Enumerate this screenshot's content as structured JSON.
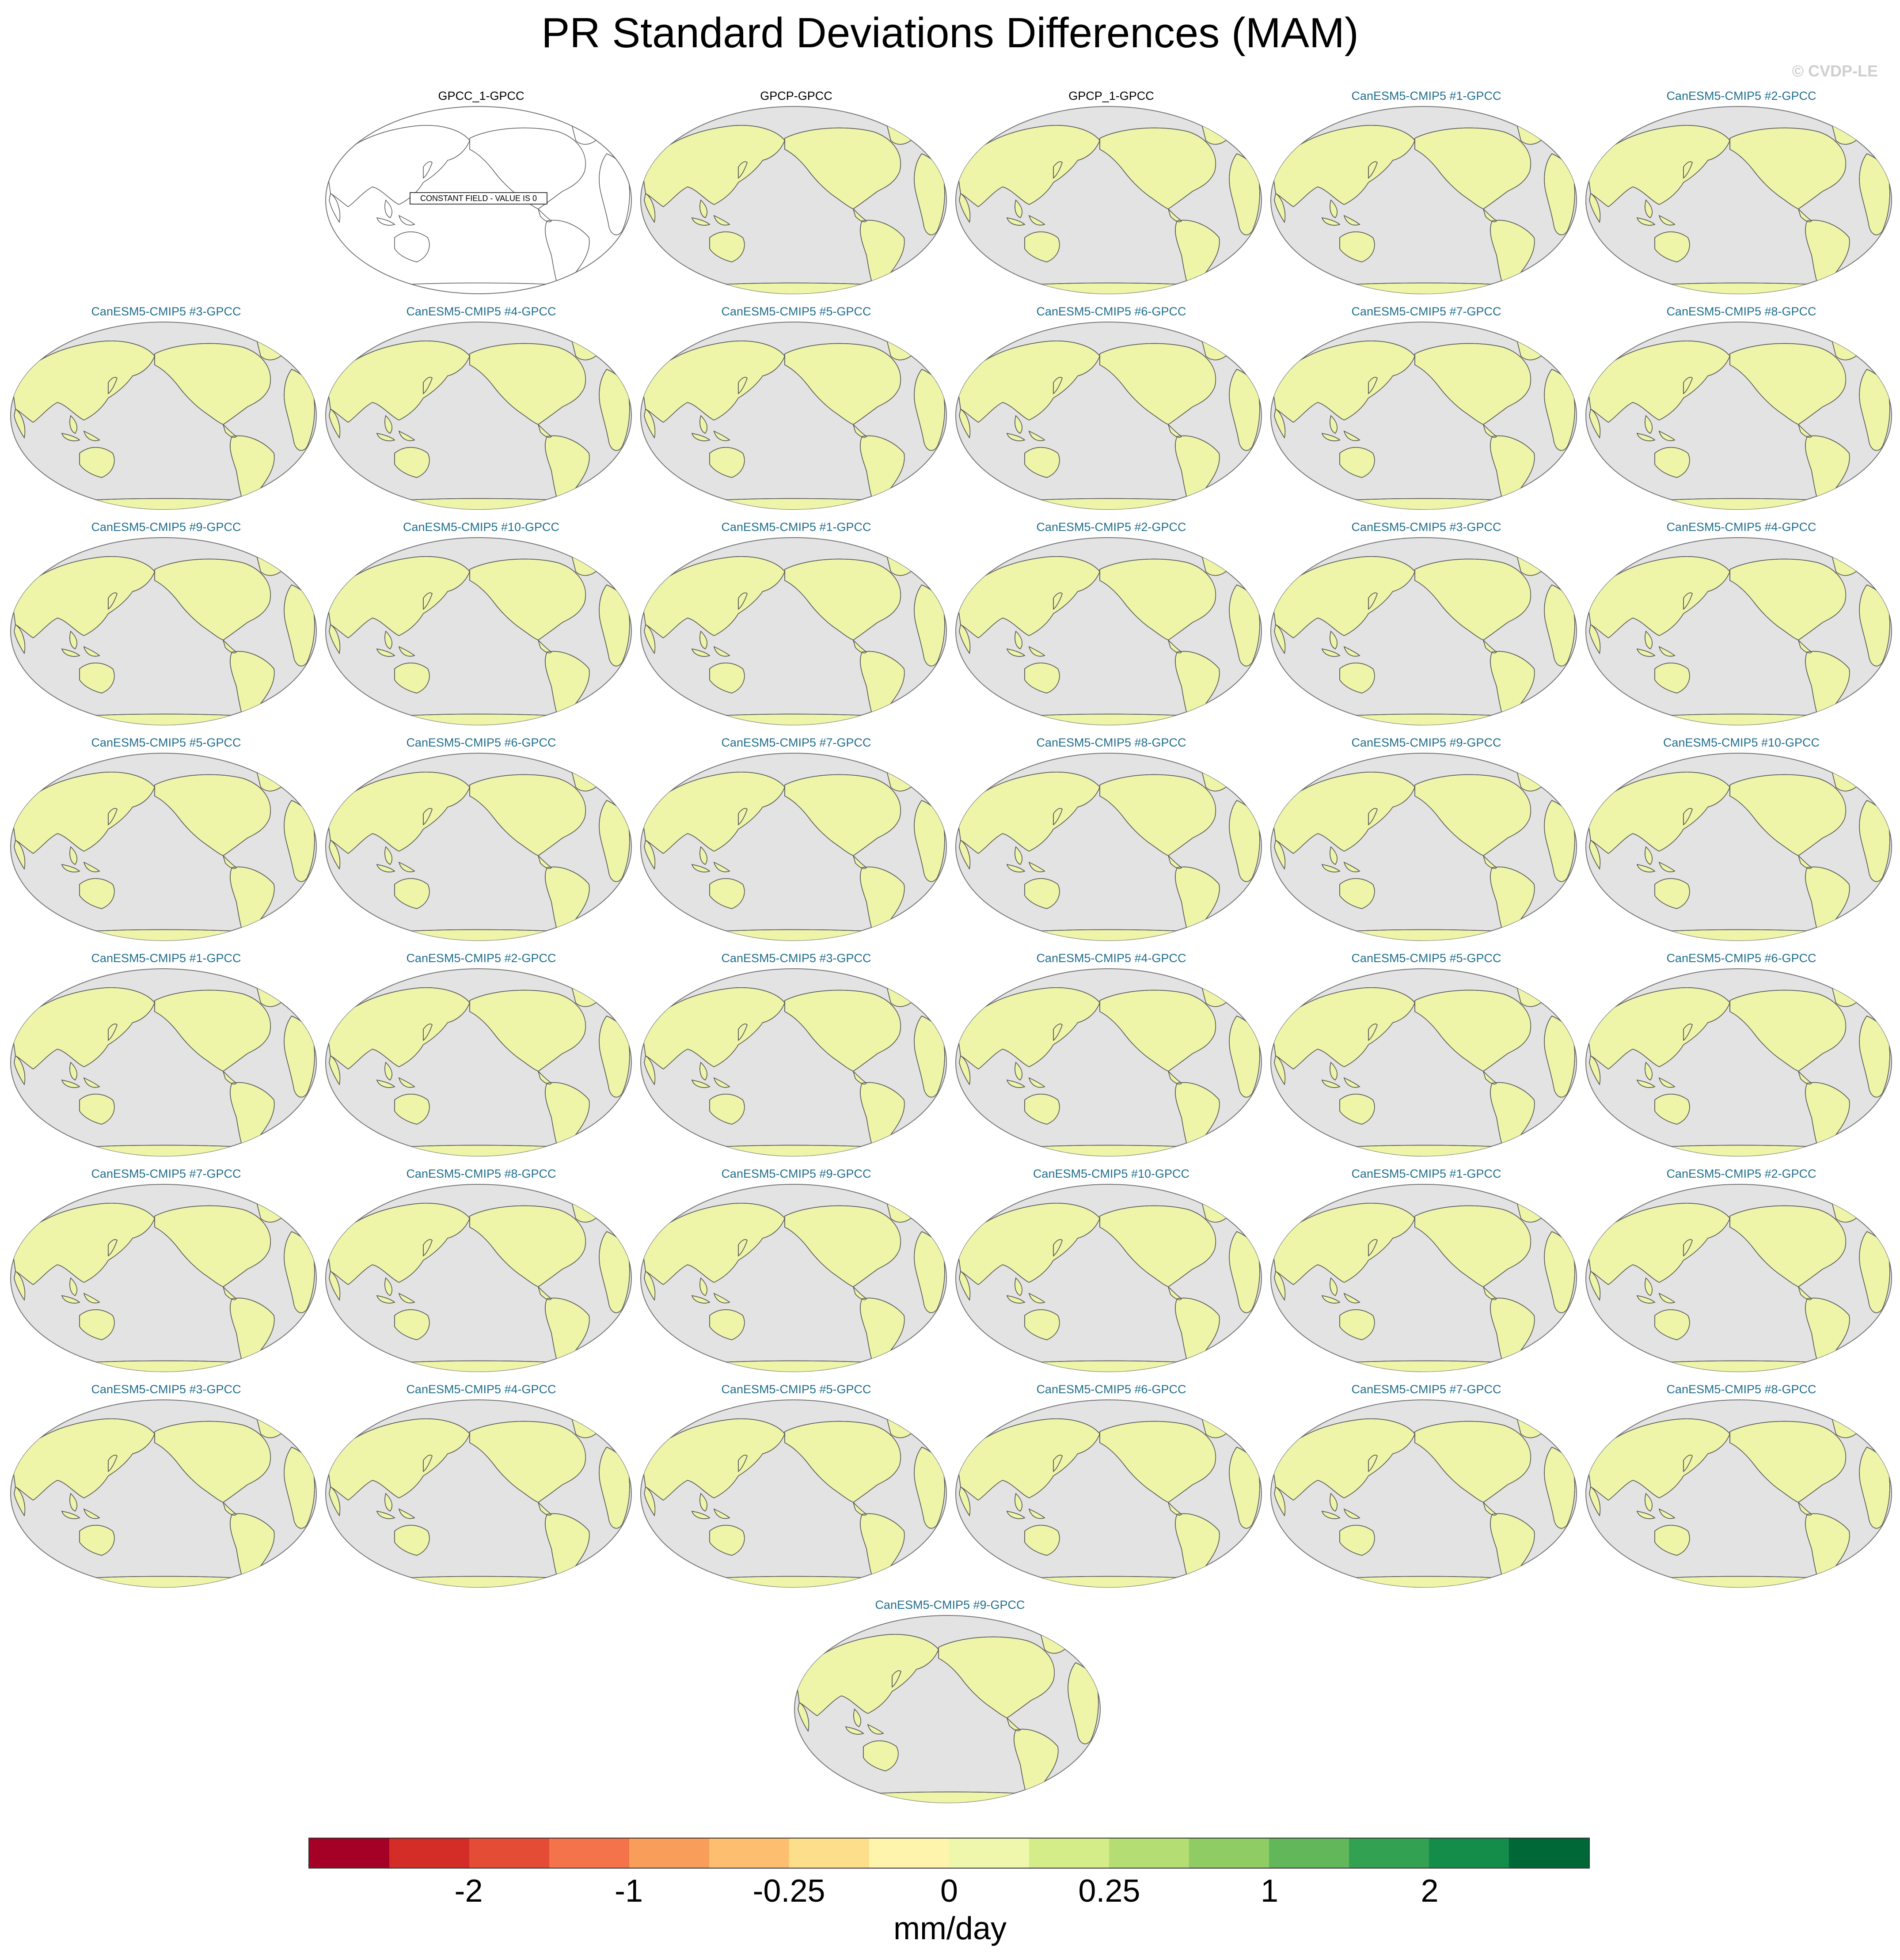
{
  "title": "PR Standard Deviations Differences (MAM)",
  "watermark": "© CVDP-LE",
  "colors": {
    "ocean": "#e3e3e3",
    "observation_title": "#000000",
    "model_title": "#1f6e8c",
    "coastline": "#555555"
  },
  "panels": [
    {
      "label": "GPCC_1-GPCC",
      "kind": "observation",
      "constant_note": "CONSTANT FIELD - VALUE IS 0"
    },
    {
      "label": "GPCP-GPCC",
      "kind": "observation"
    },
    {
      "label": "GPCP_1-GPCC",
      "kind": "observation"
    },
    {
      "label": "CanESM5-CMIP5 #1-GPCC",
      "kind": "model"
    },
    {
      "label": "CanESM5-CMIP5 #2-GPCC",
      "kind": "model"
    },
    {
      "label": "CanESM5-CMIP5 #3-GPCC",
      "kind": "model"
    },
    {
      "label": "CanESM5-CMIP5 #4-GPCC",
      "kind": "model"
    },
    {
      "label": "CanESM5-CMIP5 #5-GPCC",
      "kind": "model"
    },
    {
      "label": "CanESM5-CMIP5 #6-GPCC",
      "kind": "model"
    },
    {
      "label": "CanESM5-CMIP5 #7-GPCC",
      "kind": "model"
    },
    {
      "label": "CanESM5-CMIP5 #8-GPCC",
      "kind": "model"
    },
    {
      "label": "CanESM5-CMIP5 #9-GPCC",
      "kind": "model"
    },
    {
      "label": "CanESM5-CMIP5 #10-GPCC",
      "kind": "model"
    },
    {
      "label": "CanESM5-CMIP5 #1-GPCC",
      "kind": "model"
    },
    {
      "label": "CanESM5-CMIP5 #2-GPCC",
      "kind": "model"
    },
    {
      "label": "CanESM5-CMIP5 #3-GPCC",
      "kind": "model"
    },
    {
      "label": "CanESM5-CMIP5 #4-GPCC",
      "kind": "model"
    },
    {
      "label": "CanESM5-CMIP5 #5-GPCC",
      "kind": "model"
    },
    {
      "label": "CanESM5-CMIP5 #6-GPCC",
      "kind": "model"
    },
    {
      "label": "CanESM5-CMIP5 #7-GPCC",
      "kind": "model"
    },
    {
      "label": "CanESM5-CMIP5 #8-GPCC",
      "kind": "model"
    },
    {
      "label": "CanESM5-CMIP5 #9-GPCC",
      "kind": "model"
    },
    {
      "label": "CanESM5-CMIP5 #10-GPCC",
      "kind": "model"
    },
    {
      "label": "CanESM5-CMIP5 #1-GPCC",
      "kind": "model"
    },
    {
      "label": "CanESM5-CMIP5 #2-GPCC",
      "kind": "model"
    },
    {
      "label": "CanESM5-CMIP5 #3-GPCC",
      "kind": "model"
    },
    {
      "label": "CanESM5-CMIP5 #4-GPCC",
      "kind": "model"
    },
    {
      "label": "CanESM5-CMIP5 #5-GPCC",
      "kind": "model"
    },
    {
      "label": "CanESM5-CMIP5 #6-GPCC",
      "kind": "model"
    },
    {
      "label": "CanESM5-CMIP5 #7-GPCC",
      "kind": "model"
    },
    {
      "label": "CanESM5-CMIP5 #8-GPCC",
      "kind": "model"
    },
    {
      "label": "CanESM5-CMIP5 #9-GPCC",
      "kind": "model"
    },
    {
      "label": "CanESM5-CMIP5 #10-GPCC",
      "kind": "model"
    },
    {
      "label": "CanESM5-CMIP5 #1-GPCC",
      "kind": "model"
    },
    {
      "label": "CanESM5-CMIP5 #2-GPCC",
      "kind": "model"
    },
    {
      "label": "CanESM5-CMIP5 #3-GPCC",
      "kind": "model"
    },
    {
      "label": "CanESM5-CMIP5 #4-GPCC",
      "kind": "model"
    },
    {
      "label": "CanESM5-CMIP5 #5-GPCC",
      "kind": "model"
    },
    {
      "label": "CanESM5-CMIP5 #6-GPCC",
      "kind": "model"
    },
    {
      "label": "CanESM5-CMIP5 #7-GPCC",
      "kind": "model"
    },
    {
      "label": "CanESM5-CMIP5 #8-GPCC",
      "kind": "model"
    },
    {
      "label": "CanESM5-CMIP5 #9-GPCC",
      "kind": "model"
    }
  ],
  "colorbar": {
    "units": "mm/day",
    "colors": [
      "#a50026",
      "#d42c27",
      "#e54c35",
      "#f4734a",
      "#f99d5a",
      "#fdbf6f",
      "#fddf8b",
      "#fef4ac",
      "#eef7ac",
      "#d5ed88",
      "#b4dd74",
      "#8fcc64",
      "#63b75b",
      "#33a152",
      "#148c4a",
      "#006837"
    ],
    "ticks": [
      {
        "label": "-2",
        "boundary": 2
      },
      {
        "label": "-1",
        "boundary": 4
      },
      {
        "label": "-0.25",
        "boundary": 6
      },
      {
        "label": "0",
        "boundary": 8
      },
      {
        "label": "0.25",
        "boundary": 10
      },
      {
        "label": "1",
        "boundary": 12
      },
      {
        "label": "2",
        "boundary": 14
      }
    ]
  }
}
